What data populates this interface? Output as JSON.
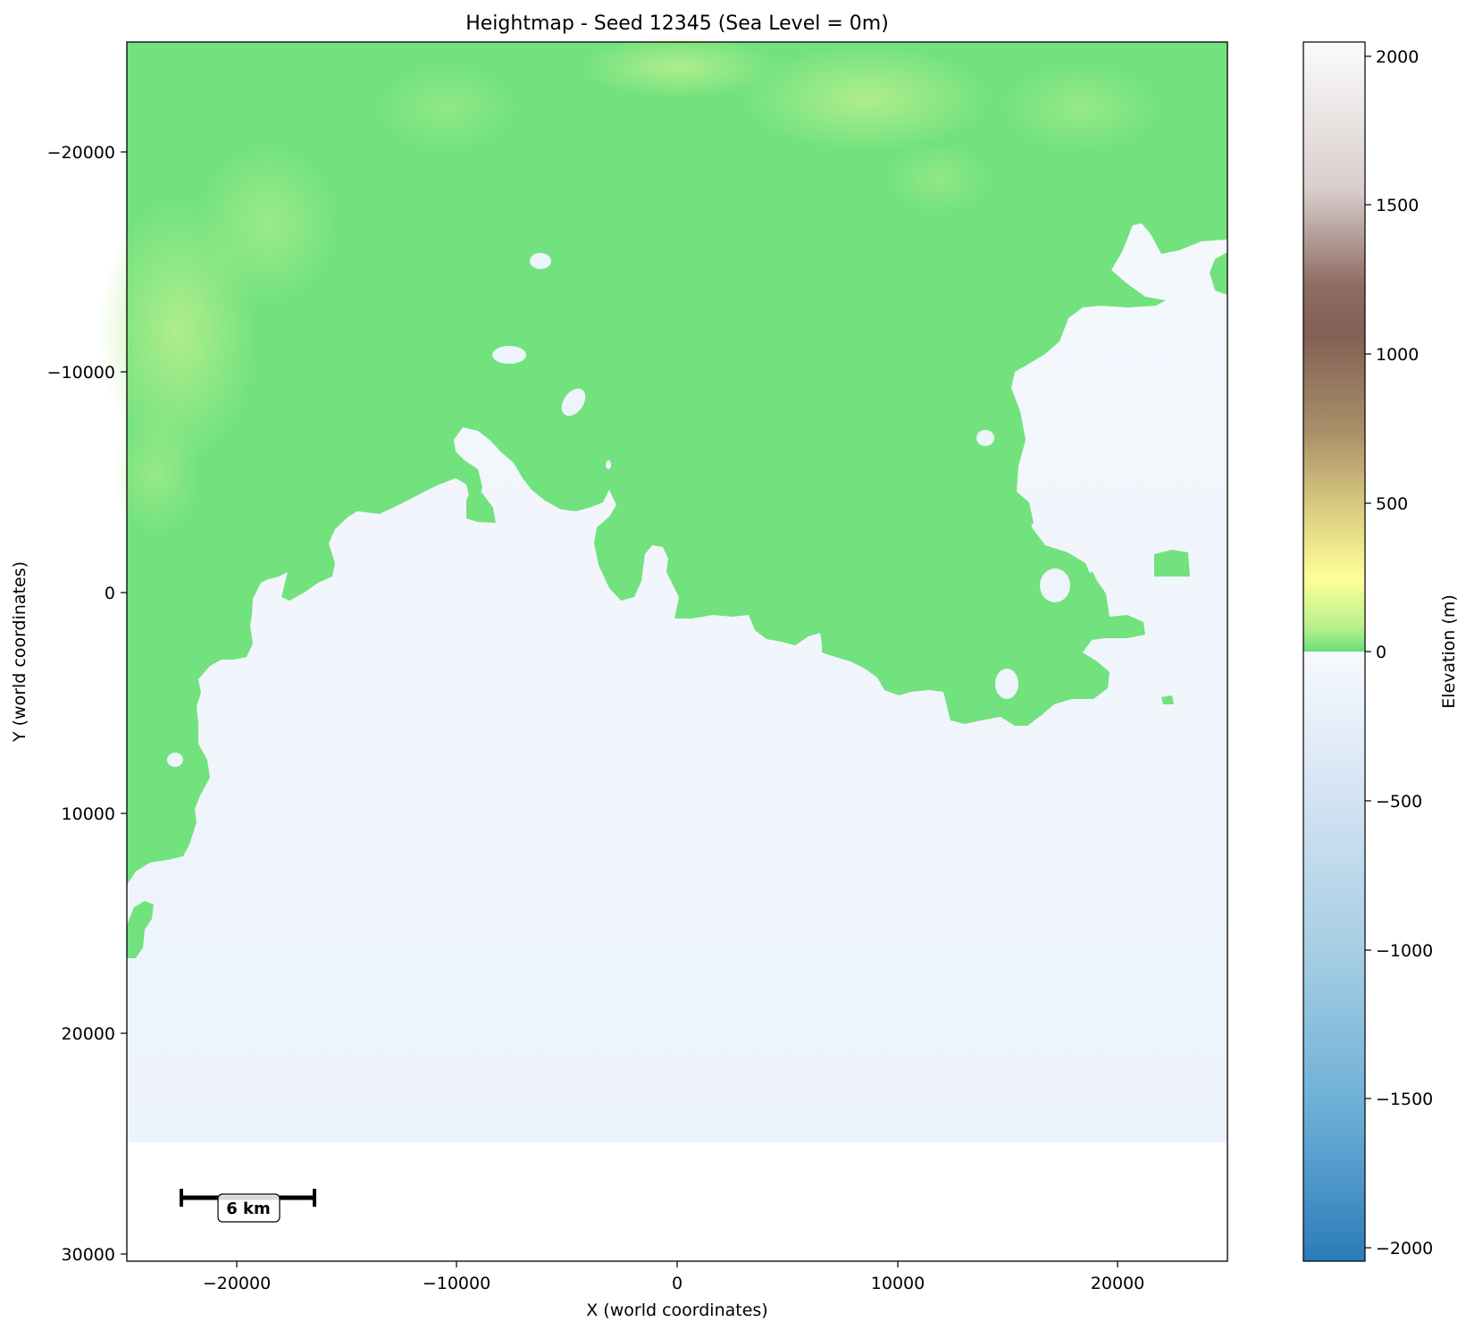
{
  "title": "Heightmap - Seed 12345 (Sea Level = 0m)",
  "xlabel": "X (world coordinates)",
  "ylabel": "Y (world coordinates)",
  "xticks": [
    "−20000",
    "−10000",
    "0",
    "10000",
    "20000"
  ],
  "yticks": [
    "−20000",
    "−10000",
    "0",
    "10000",
    "20000",
    "30000"
  ],
  "colorbar": {
    "label": "Elevation (m)",
    "ticks": [
      "2000",
      "1500",
      "1000",
      "500",
      "0",
      "−500",
      "−1000",
      "−1500",
      "−2000"
    ],
    "land_colors": [
      "#66e07c",
      "#a8ee88",
      "#ffff99",
      "#bca56b",
      "#835f55",
      "#f5f3f3"
    ],
    "sea_colors": [
      "#f7fafe",
      "#c6dbef",
      "#9ecae1",
      "#6baed6",
      "#2f83bf"
    ]
  },
  "scale_bar": {
    "label": "6 km"
  },
  "colors": {
    "land": "#72e27e",
    "land_high": "#aeed8c",
    "sea": "#eef4fc"
  },
  "chart_data": {
    "type": "heatmap",
    "title": "Heightmap - Seed 12345 (Sea Level = 0m)",
    "xlabel": "X (world coordinates)",
    "ylabel": "Y (world coordinates)",
    "xlim": [
      -25000,
      25000
    ],
    "ylim": [
      30300,
      -25000
    ],
    "data_extent_y": [
      -25000,
      25000
    ],
    "colorbar_range": [
      -2050,
      2050
    ],
    "colorbar_label": "Elevation (m)",
    "sea_level": 0,
    "scale_bar_km": 6
  }
}
